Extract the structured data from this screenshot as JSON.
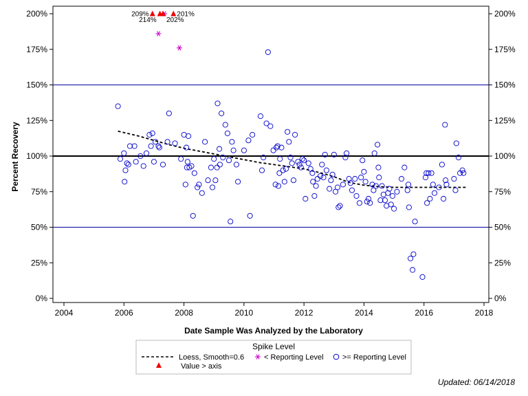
{
  "chart_data": {
    "type": "scatter",
    "xlabel": "Date Sample Was Analyzed by the Laboratory",
    "ylabel": "Percent Recovery",
    "xlim": [
      2004,
      2018
    ],
    "ylim": [
      0,
      200
    ],
    "x_ticks": [
      "2004",
      "2006",
      "2008",
      "2010",
      "2012",
      "2014",
      "2016",
      "2018"
    ],
    "x_tick_values": [
      2004,
      2006,
      2008,
      2010,
      2012,
      2014,
      2016,
      2018
    ],
    "y_ticks": [
      "0%",
      "25%",
      "50%",
      "75%",
      "100%",
      "125%",
      "150%",
      "175%",
      "200%"
    ],
    "y_tick_values": [
      0,
      25,
      50,
      75,
      100,
      125,
      150,
      175,
      200
    ],
    "right_axis": true,
    "reference_lines": [
      {
        "y": 100,
        "color": "#000000",
        "style": "thick"
      },
      {
        "y": 50,
        "color": "#0000a0",
        "style": "thin"
      },
      {
        "y": 150,
        "color": "#0000a0",
        "style": "thin"
      }
    ],
    "grid": false,
    "legend_position": "bottom",
    "legend_title": "Spike Level",
    "legend_entries": [
      {
        "label": "Loess, Smooth=0.6",
        "symbol": "dashed-line",
        "color": "#000000"
      },
      {
        "label": "< Reporting Level",
        "symbol": "star",
        "color": "#cc00cc"
      },
      {
        "label": ">= Reporting Level",
        "symbol": "open-circle",
        "color": "#0000cc"
      },
      {
        "label": "Value > axis",
        "symbol": "triangle",
        "color": "#ee0000"
      }
    ],
    "series": [
      {
        "name": ">= Reporting Level",
        "marker": "open-circle",
        "color": "#0000cc",
        "points": [
          [
            2005.8,
            135
          ],
          [
            2005.88,
            98
          ],
          [
            2006.0,
            102
          ],
          [
            2006.02,
            82
          ],
          [
            2006.05,
            90
          ],
          [
            2006.1,
            95
          ],
          [
            2006.15,
            94
          ],
          [
            2006.2,
            107
          ],
          [
            2006.35,
            107
          ],
          [
            2006.4,
            96
          ],
          [
            2006.55,
            100
          ],
          [
            2006.65,
            93
          ],
          [
            2006.75,
            102
          ],
          [
            2006.85,
            115
          ],
          [
            2006.9,
            107
          ],
          [
            2006.95,
            116
          ],
          [
            2007.0,
            96
          ],
          [
            2007.05,
            110
          ],
          [
            2007.15,
            107
          ],
          [
            2007.18,
            106
          ],
          [
            2007.3,
            94
          ],
          [
            2007.45,
            110
          ],
          [
            2007.5,
            130
          ],
          [
            2007.7,
            109
          ],
          [
            2007.9,
            98
          ],
          [
            2008.0,
            115
          ],
          [
            2008.05,
            80
          ],
          [
            2008.08,
            106
          ],
          [
            2008.1,
            92
          ],
          [
            2008.12,
            96
          ],
          [
            2008.15,
            114
          ],
          [
            2008.18,
            92
          ],
          [
            2008.25,
            93
          ],
          [
            2008.3,
            58
          ],
          [
            2008.35,
            88
          ],
          [
            2008.45,
            78
          ],
          [
            2008.5,
            80
          ],
          [
            2008.6,
            74
          ],
          [
            2008.7,
            110
          ],
          [
            2008.8,
            83
          ],
          [
            2008.9,
            92
          ],
          [
            2008.95,
            78
          ],
          [
            2009.0,
            98
          ],
          [
            2009.05,
            83
          ],
          [
            2009.1,
            92
          ],
          [
            2009.12,
            137
          ],
          [
            2009.18,
            105
          ],
          [
            2009.2,
            94
          ],
          [
            2009.25,
            130
          ],
          [
            2009.3,
            99
          ],
          [
            2009.38,
            122
          ],
          [
            2009.45,
            116
          ],
          [
            2009.5,
            97
          ],
          [
            2009.55,
            54
          ],
          [
            2009.6,
            110
          ],
          [
            2009.65,
            104
          ],
          [
            2009.75,
            94
          ],
          [
            2009.8,
            82
          ],
          [
            2010.0,
            104
          ],
          [
            2010.15,
            111
          ],
          [
            2010.2,
            58
          ],
          [
            2010.28,
            115
          ],
          [
            2010.55,
            128
          ],
          [
            2010.6,
            90
          ],
          [
            2010.65,
            99
          ],
          [
            2010.75,
            123
          ],
          [
            2010.8,
            173
          ],
          [
            2010.88,
            121
          ],
          [
            2010.98,
            104
          ],
          [
            2011.05,
            80
          ],
          [
            2011.08,
            106
          ],
          [
            2011.12,
            107
          ],
          [
            2011.15,
            79
          ],
          [
            2011.18,
            88
          ],
          [
            2011.2,
            98
          ],
          [
            2011.25,
            106
          ],
          [
            2011.3,
            90
          ],
          [
            2011.35,
            82
          ],
          [
            2011.4,
            91
          ],
          [
            2011.45,
            117
          ],
          [
            2011.5,
            110
          ],
          [
            2011.55,
            99
          ],
          [
            2011.6,
            95
          ],
          [
            2011.65,
            83
          ],
          [
            2011.7,
            115
          ],
          [
            2011.8,
            96
          ],
          [
            2011.85,
            94
          ],
          [
            2011.9,
            92
          ],
          [
            2011.95,
            98
          ],
          [
            2012.0,
            97
          ],
          [
            2012.05,
            70
          ],
          [
            2012.15,
            95
          ],
          [
            2012.22,
            91
          ],
          [
            2012.28,
            88
          ],
          [
            2012.3,
            82
          ],
          [
            2012.35,
            72
          ],
          [
            2012.4,
            79
          ],
          [
            2012.45,
            84
          ],
          [
            2012.55,
            86
          ],
          [
            2012.6,
            94
          ],
          [
            2012.65,
            85
          ],
          [
            2012.7,
            101
          ],
          [
            2012.75,
            90
          ],
          [
            2012.85,
            77
          ],
          [
            2012.9,
            83
          ],
          [
            2012.95,
            87
          ],
          [
            2013.0,
            101
          ],
          [
            2013.05,
            75
          ],
          [
            2013.12,
            78
          ],
          [
            2013.15,
            64
          ],
          [
            2013.2,
            65
          ],
          [
            2013.3,
            80
          ],
          [
            2013.38,
            99
          ],
          [
            2013.42,
            102
          ],
          [
            2013.5,
            84
          ],
          [
            2013.55,
            81
          ],
          [
            2013.6,
            76
          ],
          [
            2013.7,
            84
          ],
          [
            2013.75,
            72
          ],
          [
            2013.85,
            67
          ],
          [
            2013.9,
            85
          ],
          [
            2013.95,
            97
          ],
          [
            2014.0,
            89
          ],
          [
            2014.05,
            82
          ],
          [
            2014.1,
            68
          ],
          [
            2014.15,
            70
          ],
          [
            2014.2,
            67
          ],
          [
            2014.28,
            80
          ],
          [
            2014.32,
            76
          ],
          [
            2014.35,
            102
          ],
          [
            2014.4,
            79
          ],
          [
            2014.45,
            108
          ],
          [
            2014.48,
            92
          ],
          [
            2014.5,
            85
          ],
          [
            2014.55,
            69
          ],
          [
            2014.6,
            79
          ],
          [
            2014.65,
            73
          ],
          [
            2014.7,
            69
          ],
          [
            2014.75,
            65
          ],
          [
            2014.8,
            74
          ],
          [
            2014.85,
            77
          ],
          [
            2014.9,
            66
          ],
          [
            2014.95,
            72
          ],
          [
            2015.0,
            63
          ],
          [
            2015.1,
            75
          ],
          [
            2015.25,
            84
          ],
          [
            2015.35,
            92
          ],
          [
            2015.45,
            76
          ],
          [
            2015.48,
            80
          ],
          [
            2015.5,
            64
          ],
          [
            2015.55,
            28
          ],
          [
            2015.65,
            31
          ],
          [
            2015.62,
            20
          ],
          [
            2015.7,
            54
          ],
          [
            2015.95,
            15
          ],
          [
            2016.05,
            85
          ],
          [
            2016.08,
            88
          ],
          [
            2016.1,
            67
          ],
          [
            2016.15,
            88
          ],
          [
            2016.2,
            70
          ],
          [
            2016.25,
            88
          ],
          [
            2016.3,
            80
          ],
          [
            2016.35,
            74
          ],
          [
            2016.5,
            78
          ],
          [
            2016.6,
            94
          ],
          [
            2016.65,
            70
          ],
          [
            2016.7,
            122
          ],
          [
            2016.72,
            83
          ],
          [
            2016.75,
            80
          ],
          [
            2017.0,
            84
          ],
          [
            2017.05,
            76
          ],
          [
            2017.08,
            109
          ],
          [
            2017.15,
            99
          ],
          [
            2017.2,
            88
          ],
          [
            2017.28,
            90
          ],
          [
            2017.32,
            88
          ]
        ]
      },
      {
        "name": "< Reporting Level",
        "marker": "star",
        "color": "#cc00cc",
        "points": [
          [
            2007.15,
            186
          ],
          [
            2007.85,
            176
          ],
          [
            2007.35,
            200
          ]
        ]
      },
      {
        "name": "Value > axis",
        "marker": "triangle",
        "color": "#ee0000",
        "points": [
          [
            2006.95,
            200
          ],
          [
            2007.2,
            200
          ],
          [
            2007.3,
            200
          ],
          [
            2007.65,
            200
          ]
        ],
        "labels": [
          "209%",
          "214%",
          "202%",
          "201%"
        ]
      },
      {
        "name": "Loess, Smooth=0.6",
        "marker": "dashed-line",
        "color": "#000000",
        "points": [
          [
            2005.8,
            117.5
          ],
          [
            2006.5,
            114
          ],
          [
            2007.0,
            111
          ],
          [
            2007.5,
            108
          ],
          [
            2008.0,
            105.5
          ],
          [
            2008.5,
            103.5
          ],
          [
            2009.0,
            101.5
          ],
          [
            2009.5,
            99.5
          ],
          [
            2010.0,
            97.5
          ],
          [
            2010.5,
            95.5
          ],
          [
            2011.0,
            94
          ],
          [
            2011.5,
            92.5
          ],
          [
            2012.0,
            91
          ],
          [
            2012.5,
            88.5
          ],
          [
            2013.0,
            85.5
          ],
          [
            2013.5,
            81.5
          ],
          [
            2014.0,
            79.5
          ],
          [
            2014.5,
            78.5
          ],
          [
            2015.0,
            78
          ],
          [
            2015.5,
            78
          ],
          [
            2016.0,
            78
          ],
          [
            2016.5,
            78
          ],
          [
            2017.0,
            78
          ],
          [
            2017.4,
            78
          ]
        ]
      }
    ]
  },
  "annotations": [
    {
      "text": "209%",
      "x": 2006.95,
      "anchor": "end",
      "row": 1
    },
    {
      "text": "214%",
      "x": 2007.2,
      "anchor": "end",
      "row": 2
    },
    {
      "text": "202%",
      "x": 2007.3,
      "anchor": "start",
      "row": 2
    },
    {
      "text": "201%",
      "x": 2007.65,
      "anchor": "start",
      "row": 1
    }
  ],
  "footnote": "Updated: 06/14/2018"
}
